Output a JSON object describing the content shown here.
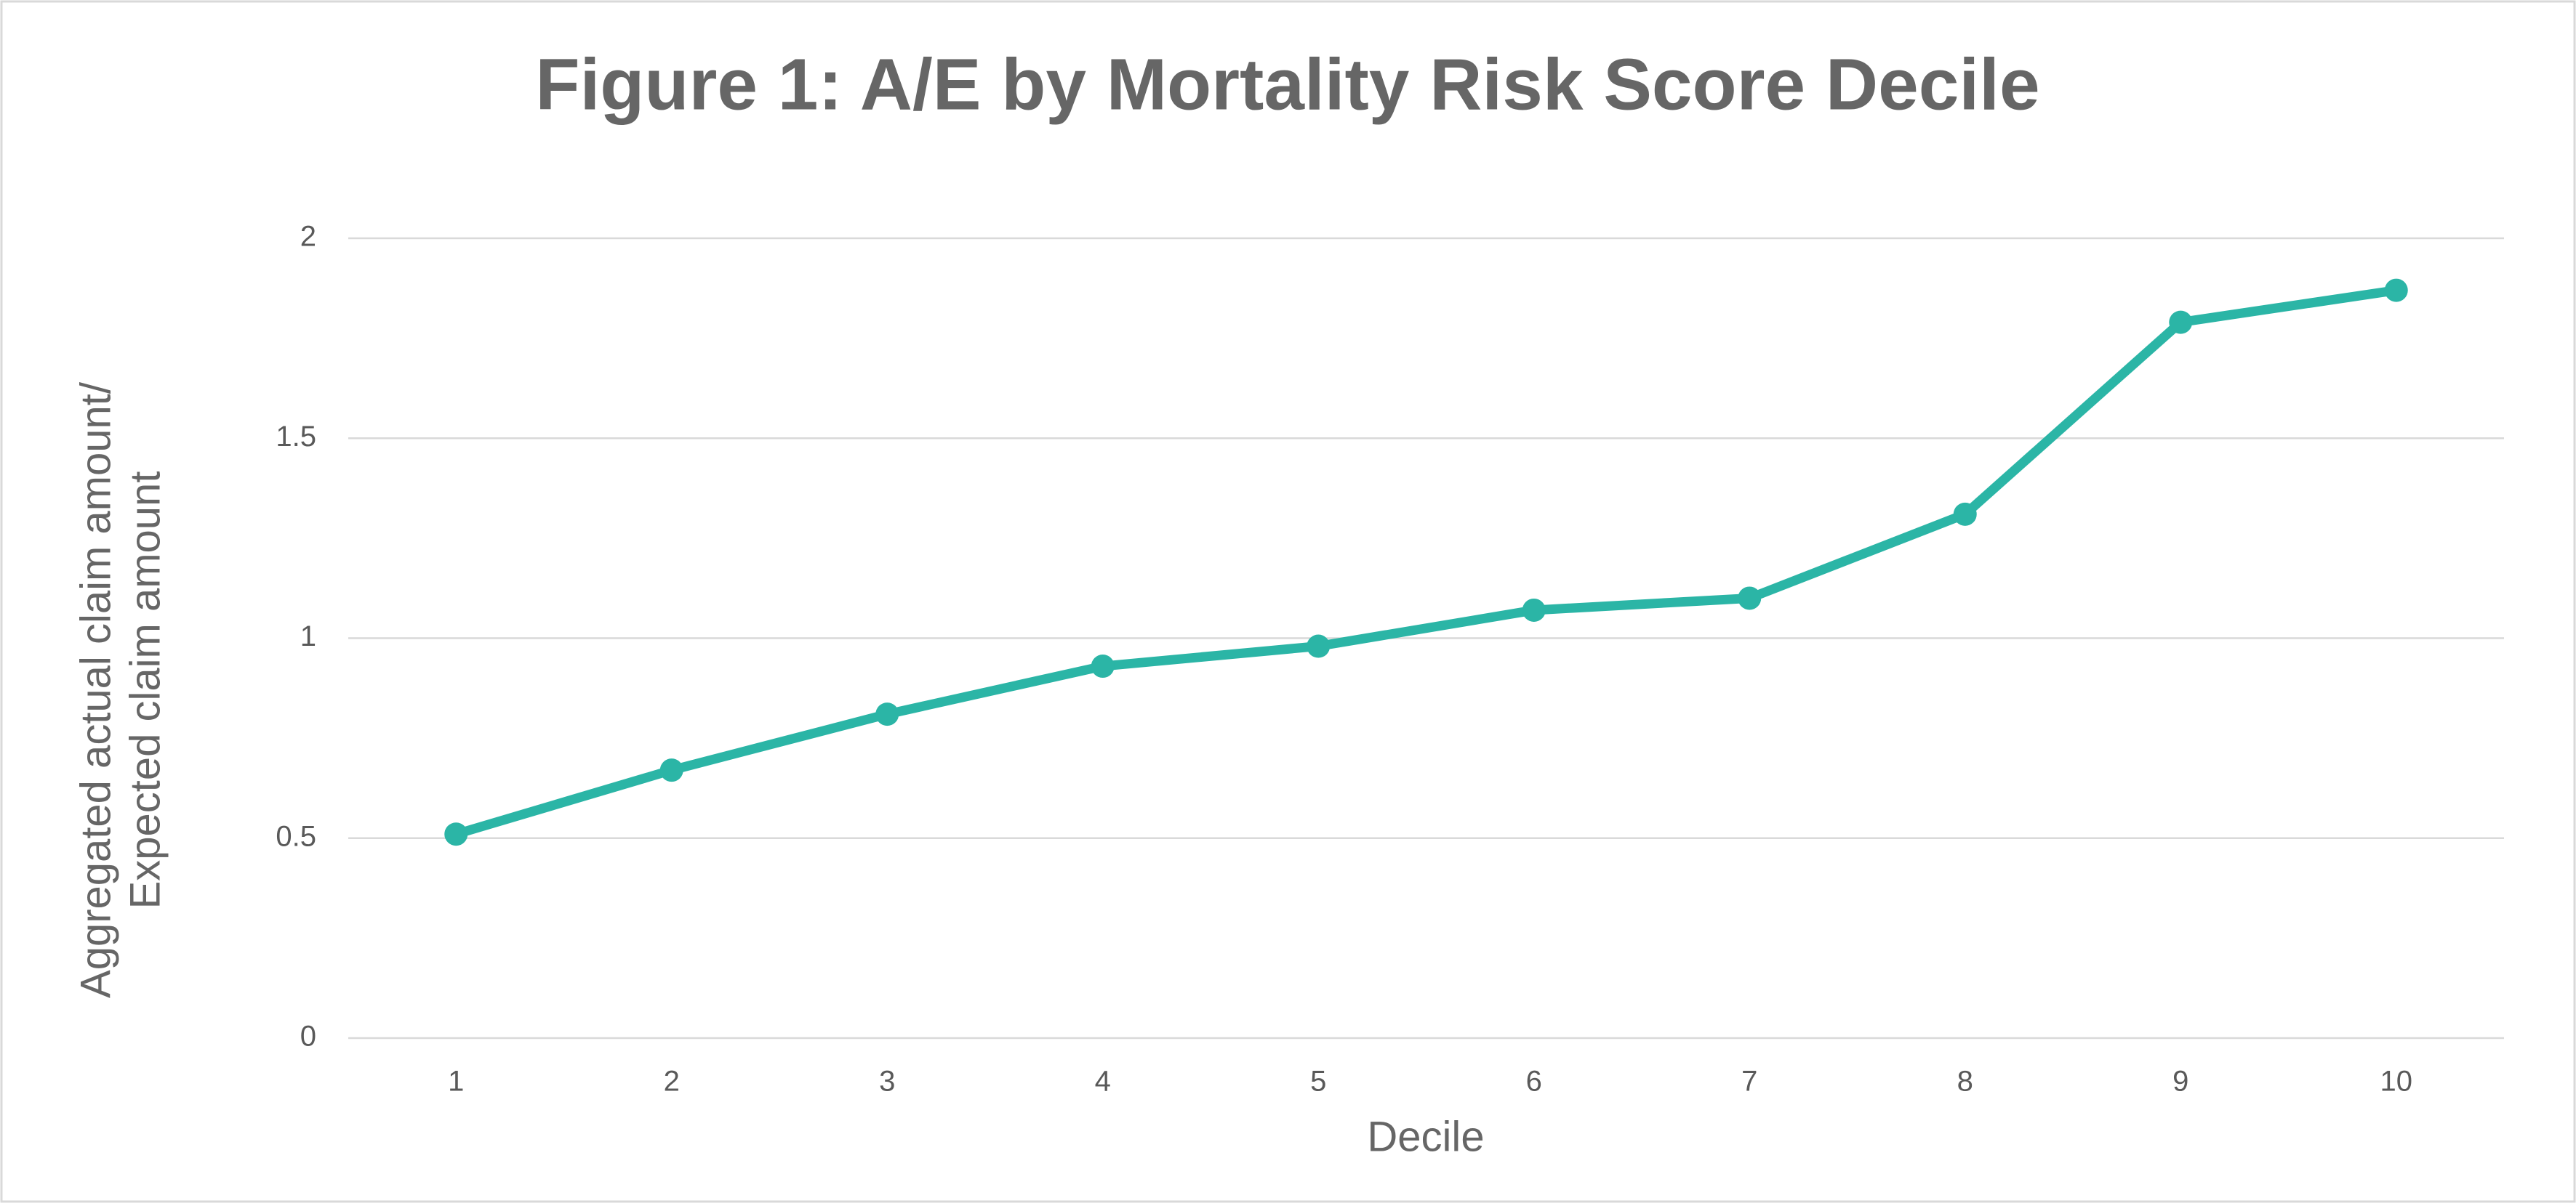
{
  "chart_data": {
    "type": "line",
    "title": "Figure 1: A/E by Mortality Risk Score Decile",
    "xlabel": "Decile",
    "ylabel": [
      "Aggregated actual claim amount/",
      "Expected claim amount"
    ],
    "categories": [
      "1",
      "2",
      "3",
      "4",
      "5",
      "6",
      "7",
      "8",
      "9",
      "10"
    ],
    "series": [
      {
        "name": "A/E",
        "color": "#2bb5a6",
        "values": [
          0.51,
          0.67,
          0.81,
          0.93,
          0.98,
          1.07,
          1.1,
          1.31,
          1.79,
          1.87
        ]
      }
    ],
    "ylim": [
      0,
      2
    ],
    "yticks": [
      0,
      0.5,
      1,
      1.5,
      2
    ],
    "grid": true
  }
}
